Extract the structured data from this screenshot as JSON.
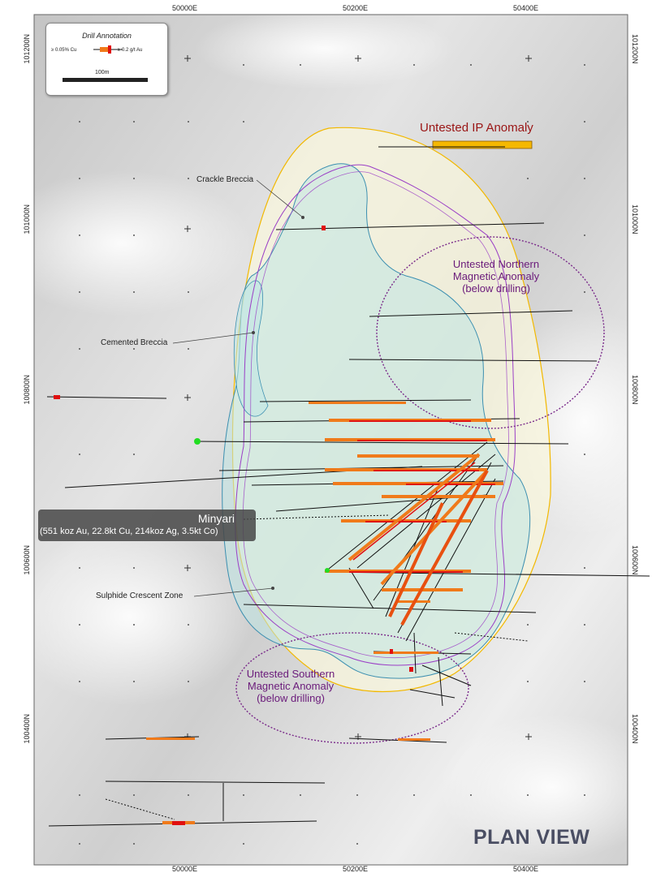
{
  "view_label": "PLAN VIEW",
  "coords": {
    "top_eastings": [
      "50000E",
      "50200E",
      "50400E"
    ],
    "bottom_eastings": [
      "50000E",
      "50200E",
      "50400E"
    ],
    "left_northings": [
      "101200N",
      "101000N",
      "100800N",
      "100600N",
      "100400N"
    ],
    "right_northings": [
      "101200N",
      "101000N",
      "100800N",
      "100600N",
      "100400N"
    ]
  },
  "legend": {
    "title": "Drill Annotation",
    "cu_label": "≥ 0.05% Cu",
    "au_label": "≥ 0.2 g/t Au",
    "scale_label": "100m"
  },
  "annotations": {
    "ip_anomaly": "Untested IP Anomaly",
    "crackle_breccia": "Crackle Breccia",
    "cemented_breccia": "Cemented Breccia",
    "sulphide_crescent": "Sulphide Crescent Zone",
    "northern_anomaly": [
      "Untested Northern",
      "Magnetic Anomaly",
      "(below drilling)"
    ],
    "southern_anomaly": [
      "Untested Southern",
      "Magnetic Anomaly",
      "(below drilling)"
    ]
  },
  "deposit": {
    "name": "Minyari",
    "resource": "(551 koz Au, 22.8kt Cu, 214koz Ag, 3.5kt Co)"
  },
  "colors": {
    "ip_outline": "#f2b800",
    "magnetic_outline": "#9b3fc6",
    "breccia_outline": "#3c8fb0",
    "drill_trace": "#111111",
    "cu_intercept": "#f07a1a",
    "au_intercept": "#e01010",
    "collar_green": "#22dd22"
  }
}
